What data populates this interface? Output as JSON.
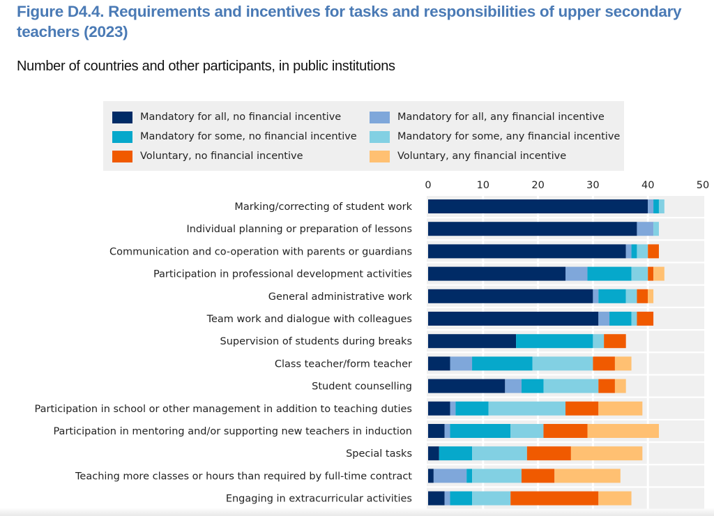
{
  "header": {
    "title": "Figure D4.4. Requirements and incentives for tasks and responsibilities of upper secondary teachers (2023)",
    "subtitle": "Number of countries and other participants, in public institutions"
  },
  "chart_data": {
    "type": "bar",
    "orientation": "horizontal",
    "stacked": true,
    "title": "Figure D4.4. Requirements and incentives for tasks and responsibilities of upper secondary teachers (2023)",
    "subtitle": "Number of countries and other participants, in public institutions",
    "xlabel": "",
    "ylabel": "",
    "xlim": [
      0,
      50
    ],
    "xticks": [
      0,
      10,
      20,
      30,
      40,
      50
    ],
    "x_axis_position": "top",
    "grid": true,
    "legend_position": "top",
    "categories": [
      "Marking/correcting of student work",
      "Individual planning or preparation of lessons",
      "Communication and co-operation with parents or guardians",
      "Participation in professional development activities",
      "General administrative work",
      "Team work and dialogue with colleagues",
      "Supervision of students during breaks",
      "Class teacher/form teacher",
      "Student counselling",
      "Participation in school or other management in addition to teaching duties",
      "Participation in mentoring and/or supporting new teachers in induction",
      "Special tasks",
      "Teaching more classes or hours than required by full-time contract",
      "Engaging in extracurricular activities"
    ],
    "series": [
      {
        "name": "Mandatory for all, no financial incentive",
        "color": "#002b66",
        "values": [
          40,
          38,
          36,
          25,
          30,
          31,
          16,
          4,
          14,
          4,
          3,
          2,
          1,
          3
        ]
      },
      {
        "name": "Mandatory for all, any financial incentive",
        "color": "#7fa7da",
        "values": [
          1,
          3,
          1,
          4,
          1,
          2,
          0,
          4,
          3,
          1,
          1,
          0,
          6,
          1
        ]
      },
      {
        "name": "Mandatory for some, no financial incentive",
        "color": "#06a8cb",
        "values": [
          1,
          0,
          1,
          8,
          5,
          4,
          14,
          11,
          4,
          6,
          11,
          6,
          1,
          4
        ]
      },
      {
        "name": "Mandatory for some, any financial incentive",
        "color": "#82d0e3",
        "values": [
          1,
          1,
          2,
          3,
          2,
          1,
          2,
          11,
          10,
          14,
          6,
          10,
          9,
          7
        ]
      },
      {
        "name": "Voluntary, no financial incentive",
        "color": "#f05a00",
        "values": [
          0,
          0,
          2,
          1,
          2,
          3,
          4,
          4,
          3,
          6,
          8,
          8,
          6,
          16
        ]
      },
      {
        "name": "Voluntary, any financial incentive",
        "color": "#ffc072",
        "values": [
          0,
          0,
          0,
          2,
          1,
          0,
          0,
          3,
          2,
          8,
          13,
          13,
          12,
          6
        ]
      }
    ]
  },
  "colors": {
    "title": "#4a7ab5",
    "plot_background": "#f0f0f0",
    "legend_background": "#efefef"
  }
}
